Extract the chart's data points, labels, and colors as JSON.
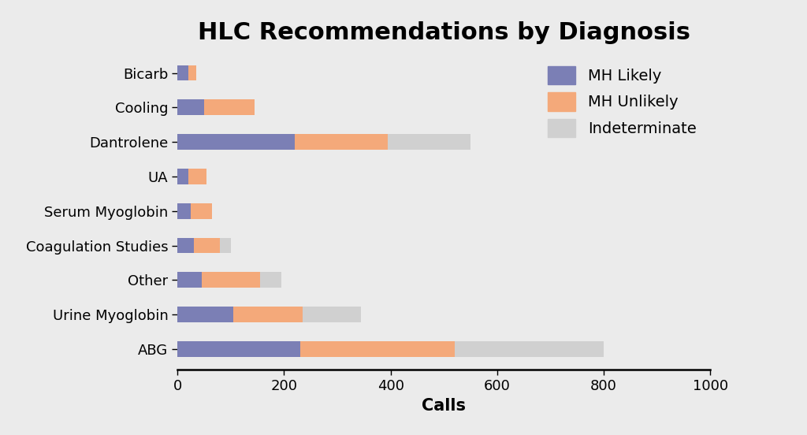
{
  "title": "HLC Recommendations by Diagnosis",
  "xlabel": "Calls",
  "categories": [
    "Bicarb",
    "Cooling",
    "Dantrolene",
    "UA",
    "Serum Myoglobin",
    "Coagulation Studies",
    "Other",
    "Urine Myoglobin",
    "ABG"
  ],
  "mh_likely": [
    20,
    50,
    220,
    20,
    25,
    30,
    45,
    105,
    230
  ],
  "mh_unlikely": [
    15,
    95,
    175,
    35,
    40,
    50,
    110,
    130,
    290
  ],
  "indeterminate": [
    0,
    0,
    155,
    0,
    0,
    20,
    40,
    110,
    280
  ],
  "color_likely": "#7b7fb5",
  "color_unlikely": "#f4a97a",
  "color_indet": "#d0d0d0",
  "xlim": [
    0,
    1000
  ],
  "xticks": [
    0,
    200,
    400,
    600,
    800,
    1000
  ],
  "background_color": "#ebebeb",
  "legend_labels": [
    "MH Likely",
    "MH Unlikely",
    "Indeterminate"
  ],
  "title_fontsize": 22,
  "label_fontsize": 15,
  "tick_fontsize": 13,
  "legend_fontsize": 14,
  "bar_height": 0.45
}
